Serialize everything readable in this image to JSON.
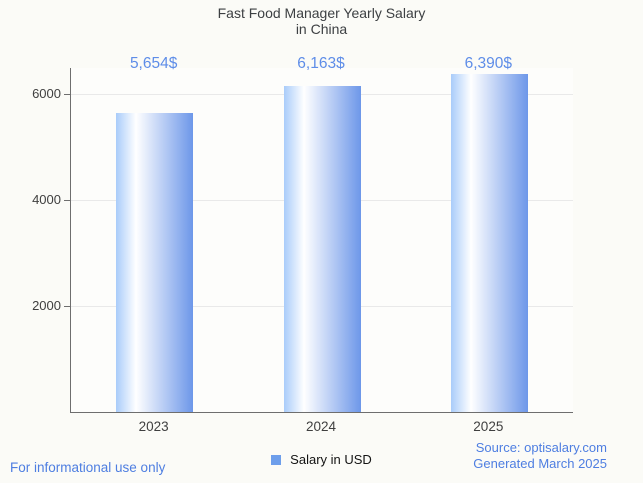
{
  "title": {
    "line1": "Fast Food Manager Yearly Salary",
    "line2": "in China"
  },
  "chart_data": {
    "type": "bar",
    "title": "Fast Food Manager Yearly Salary in China",
    "categories": [
      "2023",
      "2024",
      "2025"
    ],
    "values": [
      5654,
      6163,
      6390
    ],
    "value_labels": [
      "5,654$",
      "6,163$",
      "6,390$"
    ],
    "series_name": "Salary in USD",
    "xlabel": "",
    "ylabel": "",
    "yticks": [
      2000,
      4000,
      6000
    ],
    "ylim": [
      0,
      6500
    ],
    "grid": true,
    "legend_position": "bottom"
  },
  "legend": {
    "items": [
      {
        "label": "Salary in USD",
        "color": "#6d9eeb"
      }
    ]
  },
  "footer": {
    "left_note": "For informational use only",
    "source": "Source: optisalary.com",
    "generated": "Generated March 2025"
  },
  "colors": {
    "background": "#fbfbf7",
    "title_text": "#3d4043",
    "value_label": "#5e8de8",
    "bar_gradient_left": "#a9ccfa",
    "bar_gradient_highlight": "#ffffff",
    "bar_gradient_right": "#6d97e9",
    "legend_swatch": "#6d9eeb",
    "footer_blue": "#4e7ee1",
    "axis": "#6e6e6e",
    "grid": "#e9e9e9",
    "tick_text": "#3f3f3f"
  }
}
